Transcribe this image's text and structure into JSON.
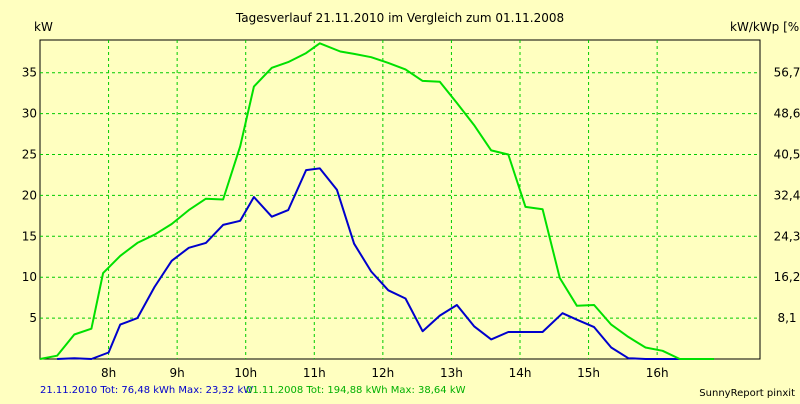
{
  "chart_data": {
    "type": "line",
    "title": "Tagesverlauf 21.11.2010 im Vergleich zum 01.11.2008",
    "ylabel_left": "kW",
    "ylabel_right": "kW/kWp [%]",
    "ylim": [
      0,
      39
    ],
    "xlim": [
      7.0,
      17.5
    ],
    "x_ticks": [
      {
        "value": 8,
        "label": "8h"
      },
      {
        "value": 9,
        "label": "9h"
      },
      {
        "value": 10,
        "label": "10h"
      },
      {
        "value": 11,
        "label": "11h"
      },
      {
        "value": 12,
        "label": "12h"
      },
      {
        "value": 13,
        "label": "13h"
      },
      {
        "value": 14,
        "label": "14h"
      },
      {
        "value": 15,
        "label": "15h"
      },
      {
        "value": 16,
        "label": "16h"
      }
    ],
    "y_ticks_left": [
      5,
      10,
      15,
      20,
      25,
      30,
      35
    ],
    "y_ticks_right": [
      {
        "value": 5,
        "label": "8,1"
      },
      {
        "value": 10,
        "label": "16,2"
      },
      {
        "value": 15,
        "label": "24,3"
      },
      {
        "value": 20,
        "label": "32,4"
      },
      {
        "value": 25,
        "label": "40,5"
      },
      {
        "value": 30,
        "label": "48,6"
      },
      {
        "value": 35,
        "label": "56,7"
      }
    ],
    "grid": true,
    "grid_color": "#00cc00",
    "series": [
      {
        "name": "21.11.2010",
        "color": "#0000cc",
        "legend_text": "21.11.2010 Tot: 76,48 kWh Max: 23,32 kW",
        "x": [
          7.25,
          7.5,
          7.75,
          8.0,
          8.17,
          8.42,
          8.67,
          8.92,
          9.17,
          9.42,
          9.67,
          9.92,
          10.12,
          10.38,
          10.62,
          10.88,
          11.08,
          11.33,
          11.58,
          11.83,
          12.08,
          12.33,
          12.58,
          12.83,
          13.08,
          13.33,
          13.58,
          13.83,
          14.08,
          14.33,
          14.62,
          14.83,
          15.08,
          15.33,
          15.58,
          15.83,
          16.08,
          16.33
        ],
        "y": [
          0,
          0.1,
          0,
          0.8,
          4.2,
          5.0,
          8.8,
          12.0,
          13.6,
          14.2,
          16.4,
          16.9,
          19.8,
          17.4,
          18.2,
          23.1,
          23.3,
          20.7,
          14.1,
          10.7,
          8.4,
          7.4,
          3.4,
          5.3,
          6.6,
          4.0,
          2.4,
          3.3,
          3.3,
          3.3,
          5.6,
          4.8,
          3.9,
          1.4,
          0.1,
          0,
          0,
          0
        ]
      },
      {
        "name": "01.11.2008",
        "color": "#00e000",
        "legend_text": "01.11.2008 Tot: 194,88 kWh Max: 38,64 kW",
        "x": [
          7.0,
          7.25,
          7.5,
          7.75,
          7.92,
          8.17,
          8.42,
          8.67,
          8.92,
          9.17,
          9.42,
          9.67,
          9.92,
          10.12,
          10.38,
          10.62,
          10.88,
          11.08,
          11.38,
          11.58,
          11.83,
          12.08,
          12.33,
          12.58,
          12.83,
          13.08,
          13.33,
          13.58,
          13.83,
          14.08,
          14.33,
          14.58,
          14.83,
          15.08,
          15.33,
          15.58,
          15.83,
          16.08,
          16.33,
          16.58,
          16.83
        ],
        "y": [
          0,
          0.4,
          3.0,
          3.7,
          10.5,
          12.6,
          14.2,
          15.2,
          16.5,
          18.2,
          19.6,
          19.5,
          26.0,
          33.3,
          35.6,
          36.3,
          37.4,
          38.6,
          37.6,
          37.3,
          36.9,
          36.2,
          35.4,
          34.0,
          33.9,
          31.3,
          28.6,
          25.5,
          25.0,
          18.6,
          18.3,
          9.9,
          6.5,
          6.6,
          4.2,
          2.7,
          1.4,
          1.0,
          0,
          0,
          0
        ]
      }
    ],
    "footer_credit": "SunnyReport pinxit"
  }
}
